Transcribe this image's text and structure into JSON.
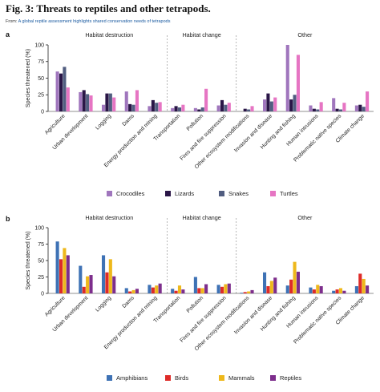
{
  "figure": {
    "title": "Fig. 3: Threats to reptiles and other tetrapods.",
    "from_prefix": "From: ",
    "from_link": "A global reptile assessment highlights shared conservation needs of tetrapods"
  },
  "chart_data": [
    {
      "type": "bar",
      "panel": "a",
      "ylabel": "Species threatened (%)",
      "ylim": [
        0,
        100
      ],
      "yticks": [
        0,
        25,
        50,
        75,
        100
      ],
      "grid": false,
      "legend": "bottom",
      "groups": [
        {
          "label": "Habitat destruction",
          "start": 0,
          "end": 4
        },
        {
          "label": "Habitat change",
          "start": 5,
          "end": 7
        },
        {
          "label": "Other",
          "start": 8,
          "end": 12
        }
      ],
      "categories": [
        "Agriculture",
        "Urban development",
        "Logging",
        "Dams",
        "Energy production and mining",
        "Transportation",
        "Pollution",
        "Fires and fire suppression",
        "Other ecosystem modifications",
        "Invasion and disease",
        "Hunting and fishing",
        "Human intrusions",
        "Problematic native species",
        "Climate change"
      ],
      "series": [
        {
          "name": "Crocodiles",
          "color": "#a076bd",
          "values": [
            60,
            29,
            10,
            30,
            8,
            5,
            5,
            9,
            0,
            18,
            100,
            9,
            20,
            9
          ]
        },
        {
          "name": "Lizards",
          "color": "#2a1647",
          "values": [
            57,
            32,
            27,
            11,
            17,
            8,
            3,
            17,
            4,
            27,
            18,
            4,
            4,
            10
          ]
        },
        {
          "name": "Snakes",
          "color": "#515d80",
          "values": [
            67,
            26,
            27,
            10,
            13,
            6,
            6,
            10,
            3,
            15,
            25,
            3,
            3,
            7
          ]
        },
        {
          "name": "Turtles",
          "color": "#e675c3",
          "values": [
            36,
            24,
            21,
            32,
            14,
            10,
            34,
            13,
            8,
            21,
            85,
            14,
            13,
            30
          ]
        }
      ]
    },
    {
      "type": "bar",
      "panel": "b",
      "ylabel": "Species threatened (%)",
      "ylim": [
        0,
        100
      ],
      "yticks": [
        0,
        25,
        50,
        75,
        100
      ],
      "grid": false,
      "legend": "bottom",
      "groups": [
        {
          "label": "Habitat destruction",
          "start": 0,
          "end": 4
        },
        {
          "label": "Habitat change",
          "start": 5,
          "end": 7
        },
        {
          "label": "Other",
          "start": 8,
          "end": 12
        }
      ],
      "categories": [
        "Agriculture",
        "Urban development",
        "Logging",
        "Dams",
        "Energy production and mining",
        "Transportation",
        "Pollution",
        "Fires and fire suppression",
        "Other ecosystem modifications",
        "Invasion and disease",
        "Hunting and fishing",
        "Human intrusions",
        "Problematic native species",
        "Climate change"
      ],
      "series": [
        {
          "name": "Amphibians",
          "color": "#3e72b5",
          "values": [
            79,
            42,
            58,
            8,
            13,
            7,
            25,
            13,
            1,
            32,
            12,
            9,
            4,
            11
          ]
        },
        {
          "name": "Birds",
          "color": "#de2b28",
          "values": [
            52,
            10,
            32,
            3,
            9,
            4,
            8,
            10,
            2,
            11,
            21,
            6,
            6,
            30
          ]
        },
        {
          "name": "Mammals",
          "color": "#eeb81b",
          "values": [
            69,
            26,
            52,
            5,
            12,
            12,
            8,
            14,
            3,
            19,
            48,
            13,
            8,
            22
          ]
        },
        {
          "name": "Reptiles",
          "color": "#7d2e8c",
          "values": [
            58,
            28,
            26,
            7,
            15,
            6,
            14,
            15,
            5,
            24,
            33,
            11,
            4,
            12
          ]
        }
      ]
    }
  ]
}
